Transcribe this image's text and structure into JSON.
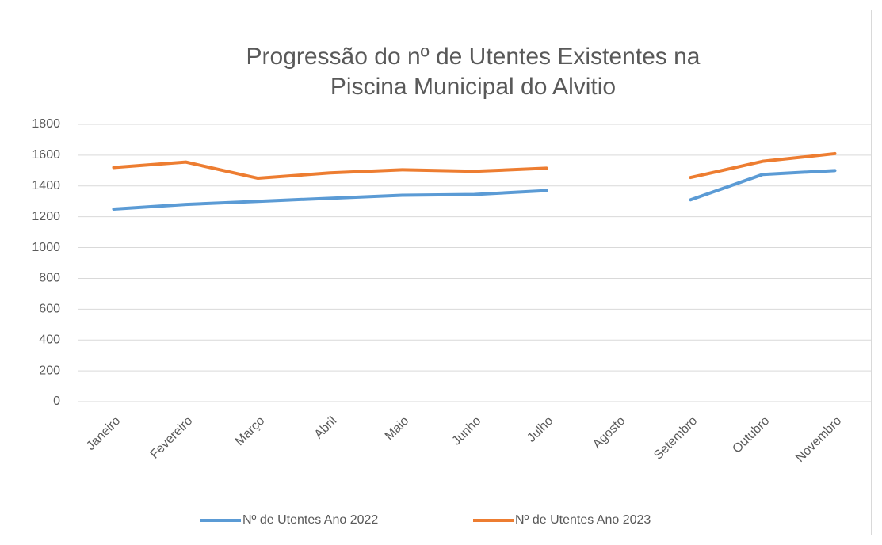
{
  "chart_data": {
    "type": "line",
    "title": [
      "Progressão do nº de Utentes Existentes na",
      "Piscina Municipal do Alvitio"
    ],
    "categories": [
      "Janeiro",
      "Fevereiro",
      "Março",
      "Abril",
      "Maio",
      "Junho",
      "Julho",
      "Agosto",
      "Setembro",
      "Outubro",
      "Novembro"
    ],
    "series": [
      {
        "name": "Nº de Utentes Ano 2022",
        "color": "#5b9bd5",
        "values": [
          1250,
          1280,
          1300,
          1320,
          1340,
          1345,
          1370,
          null,
          1310,
          1475,
          1500
        ]
      },
      {
        "name": "Nº de Utentes Ano 2023",
        "color": "#ed7d31",
        "values": [
          1520,
          1555,
          1450,
          1485,
          1505,
          1495,
          1515,
          null,
          1455,
          1560,
          1610
        ]
      }
    ],
    "ylim": [
      0,
      1800
    ],
    "yticks": [
      0,
      200,
      400,
      600,
      800,
      1000,
      1200,
      1400,
      1600,
      1800
    ],
    "grid": true,
    "legend": "bottom"
  }
}
